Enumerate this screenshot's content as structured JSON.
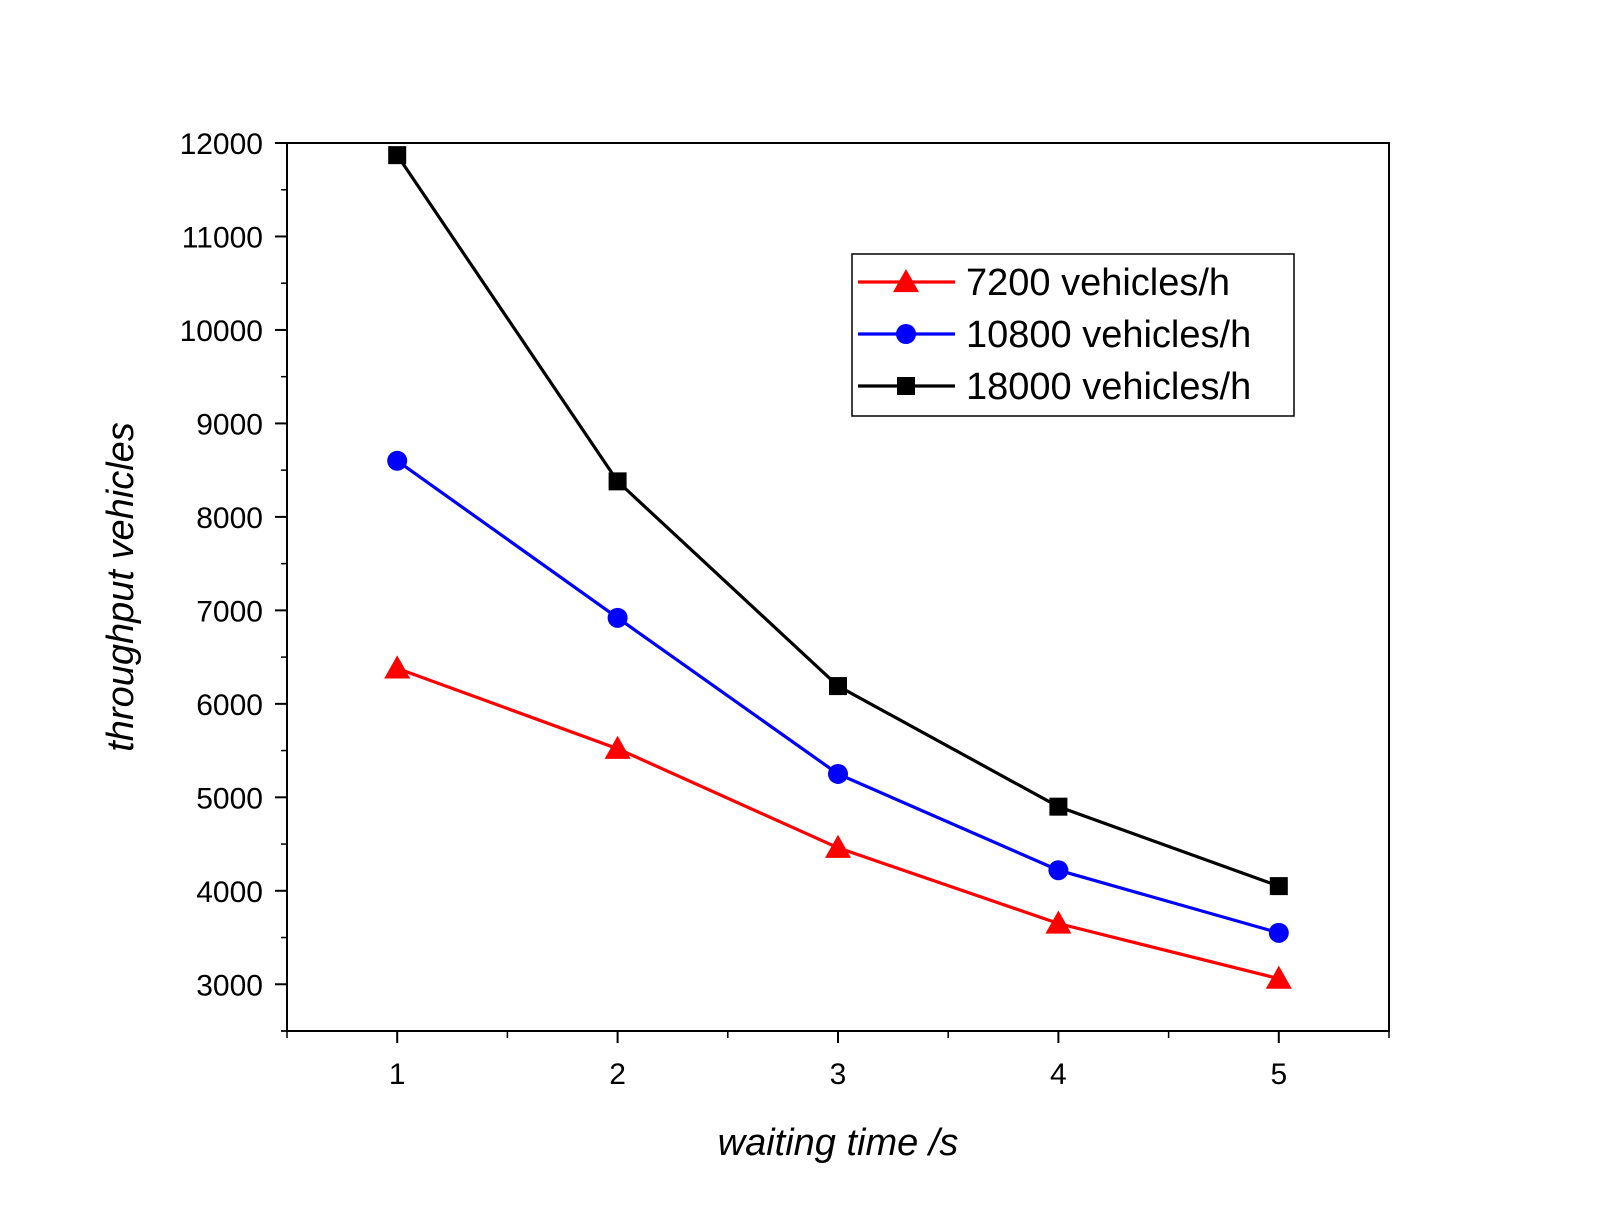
{
  "chart_data": {
    "type": "line",
    "xlabel": "waiting time /s",
    "ylabel": "throughput vehicles",
    "xlim": [
      0.5,
      5.5
    ],
    "ylim": [
      2500,
      12000
    ],
    "x_ticks": [
      1,
      2,
      3,
      4,
      5
    ],
    "y_ticks": [
      3000,
      4000,
      5000,
      6000,
      7000,
      8000,
      9000,
      10000,
      11000,
      12000
    ],
    "x": [
      1,
      2,
      3,
      4,
      5
    ],
    "grid": false,
    "legend_position": "top-right",
    "series": [
      {
        "name": "7200 vehicles/h",
        "color": "#ff0000",
        "marker": "triangle",
        "values": [
          6380,
          5520,
          4460,
          3650,
          3060
        ]
      },
      {
        "name": "10800 vehicles/h",
        "color": "#0000ff",
        "marker": "circle",
        "values": [
          8600,
          6920,
          5250,
          4220,
          3550
        ]
      },
      {
        "name": "18000 vehicles/h",
        "color": "#000000",
        "marker": "square",
        "values": [
          11870,
          8380,
          6190,
          4900,
          4050
        ]
      }
    ]
  }
}
